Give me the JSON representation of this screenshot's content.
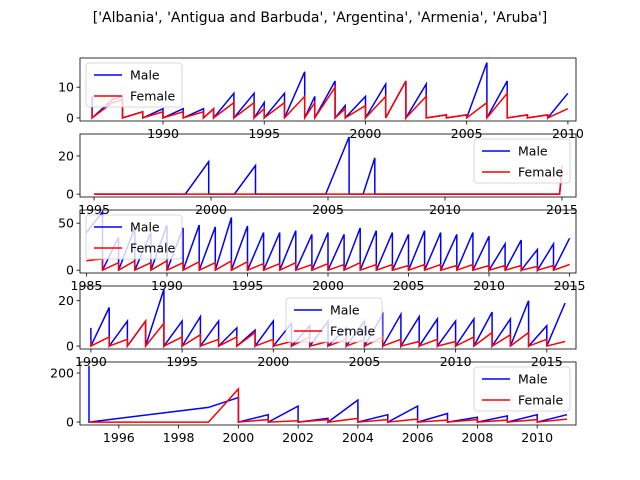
{
  "figure": {
    "title": "['Albania', 'Antigua and Barbuda', 'Argentina', 'Armenia', 'Aruba']"
  },
  "colors": {
    "male": "#0000ff",
    "female": "#ff0000"
  },
  "chart_data": [
    {
      "type": "line",
      "xlim": [
        1985.9,
        2010.4
      ],
      "ylim": [
        -1,
        19.5
      ],
      "xticks": [
        1990,
        1995,
        2000,
        2005,
        2010
      ],
      "yticks": [
        0,
        10
      ],
      "legend": "upper-left",
      "series": [
        {
          "name": "Male",
          "x": [
            1986.5,
            1986.5,
            1987.5,
            1988,
            1988,
            1989,
            1989,
            1990,
            1990,
            1991,
            1991,
            1992,
            1992,
            1992.5,
            1992.5,
            1993.5,
            1993.5,
            1994.5,
            1994.5,
            1995,
            1995,
            1996,
            1996,
            1997,
            1997,
            1997.5,
            1997.5,
            1998.5,
            1998.5,
            1999,
            1999,
            2000,
            2000,
            2001,
            2001,
            2002,
            2002,
            2003,
            2003,
            2004,
            2004,
            2005,
            2005,
            2006,
            2006,
            2007,
            2007,
            2008,
            2008,
            2009,
            2009,
            2010
          ],
          "y": [
            7,
            0,
            6,
            7,
            0,
            2,
            0,
            3,
            0,
            3,
            0,
            3,
            0,
            3,
            0,
            8,
            0,
            8,
            0,
            5,
            0,
            8,
            0,
            15,
            0,
            7,
            0,
            12,
            0,
            4,
            0,
            7,
            0,
            11,
            0,
            12,
            0,
            11,
            0,
            1,
            0,
            1,
            0,
            18,
            0,
            12,
            0,
            1,
            0,
            1,
            0,
            8
          ]
        },
        {
          "name": "Female",
          "x": [
            1986.5,
            1986.5,
            1987.5,
            1988,
            1988,
            1989,
            1989,
            1990,
            1990,
            1991,
            1991,
            1992,
            1992,
            1992.5,
            1992.5,
            1993.5,
            1993.5,
            1994.5,
            1994.5,
            1995,
            1995,
            1996,
            1996,
            1997,
            1997,
            1997.5,
            1997.5,
            1998.5,
            1998.5,
            1999,
            1999,
            2000,
            2000,
            2001,
            2001,
            2002,
            2002,
            2003,
            2003,
            2004,
            2004,
            2005,
            2005,
            2006,
            2006,
            2007,
            2007,
            2008,
            2008,
            2009,
            2009,
            2010
          ],
          "y": [
            3,
            0,
            5,
            6,
            0,
            2,
            0,
            2,
            0,
            2,
            0,
            2,
            0,
            3,
            0,
            5,
            0,
            5,
            0,
            3,
            0,
            5,
            0,
            7,
            0,
            5,
            0,
            10,
            0,
            3,
            0,
            4,
            0,
            7,
            0,
            12,
            0,
            7,
            0,
            1,
            0,
            1,
            0,
            5,
            0,
            8,
            0,
            1,
            0,
            1,
            0,
            3
          ]
        }
      ]
    },
    {
      "type": "line",
      "xlim": [
        1994.4,
        2015.6
      ],
      "ylim": [
        -1.5,
        31.5
      ],
      "xticks": [
        1995,
        2000,
        2005,
        2010,
        2015
      ],
      "yticks": [
        0,
        20
      ],
      "legend": "upper-right",
      "series": [
        {
          "name": "Male",
          "x": [
            1995,
            1998.9,
            1999.9,
            1999.9,
            2001,
            2001.9,
            2001.9,
            2004.9,
            2005.9,
            2005.9,
            2006.5,
            2007,
            2007,
            2010,
            2014.9,
            2015
          ],
          "y": [
            0,
            0,
            17,
            0,
            0,
            15,
            0,
            0,
            30,
            0,
            0,
            19,
            0,
            0,
            0,
            12
          ]
        },
        {
          "name": "Female",
          "x": [
            1995,
            2014.9,
            2015
          ],
          "y": [
            0,
            0,
            15
          ]
        }
      ]
    },
    {
      "type": "line",
      "xlim": [
        1984.6,
        2015.4
      ],
      "ylim": [
        -3,
        64
      ],
      "xticks": [
        1985,
        1990,
        1995,
        2000,
        2005,
        2010,
        2015
      ],
      "yticks": [
        0,
        50
      ],
      "legend": "upper-left",
      "series": [
        {
          "name": "Male",
          "x": [
            1985,
            1986,
            1986,
            1987,
            1987,
            1988,
            1988,
            1989,
            1989,
            1990,
            1990,
            1991,
            1991,
            1992,
            1992,
            1993,
            1993,
            1994,
            1994,
            1995,
            1995,
            1996,
            1996,
            1997,
            1997,
            1998,
            1998,
            1999,
            1999,
            2000,
            2000,
            2001,
            2001,
            2002,
            2002,
            2003,
            2003,
            2004,
            2004,
            2005,
            2005,
            2006,
            2006,
            2007,
            2007,
            2008,
            2008,
            2009,
            2009,
            2010,
            2010,
            2011,
            2011,
            2012,
            2012,
            2013,
            2013,
            2014,
            2014,
            2015
          ],
          "y": [
            40,
            62,
            0,
            35,
            0,
            45,
            0,
            40,
            0,
            48,
            0,
            45,
            0,
            48,
            0,
            46,
            0,
            56,
            0,
            47,
            0,
            40,
            0,
            40,
            0,
            42,
            0,
            38,
            0,
            40,
            0,
            38,
            0,
            45,
            0,
            42,
            0,
            40,
            0,
            38,
            0,
            42,
            0,
            40,
            0,
            38,
            0,
            40,
            0,
            36,
            0,
            28,
            0,
            32,
            0,
            22,
            0,
            28,
            0,
            34
          ]
        },
        {
          "name": "Female",
          "x": [
            1985,
            1986,
            1986,
            1987,
            1987,
            1988,
            1988,
            1989,
            1989,
            1990,
            1990,
            1991,
            1991,
            1992,
            1992,
            1993,
            1993,
            1994,
            1994,
            1995,
            1995,
            1996,
            1996,
            1997,
            1997,
            1998,
            1998,
            1999,
            1999,
            2000,
            2000,
            2001,
            2001,
            2002,
            2002,
            2003,
            2003,
            2004,
            2004,
            2005,
            2005,
            2006,
            2006,
            2007,
            2007,
            2008,
            2008,
            2009,
            2009,
            2010,
            2010,
            2011,
            2011,
            2012,
            2012,
            2013,
            2013,
            2014,
            2014,
            2015
          ],
          "y": [
            10,
            12,
            0,
            8,
            0,
            10,
            0,
            8,
            0,
            10,
            0,
            8,
            0,
            9,
            0,
            8,
            0,
            10,
            0,
            9,
            0,
            7,
            0,
            7,
            0,
            8,
            0,
            6,
            0,
            7,
            0,
            6,
            0,
            8,
            0,
            6,
            0,
            6,
            0,
            5,
            0,
            6,
            0,
            6,
            0,
            5,
            0,
            6,
            0,
            5,
            0,
            5,
            0,
            5,
            0,
            4,
            0,
            5,
            0,
            6
          ]
        }
      ]
    },
    {
      "type": "line",
      "xlim": [
        1989.4,
        2016.6
      ],
      "ylim": [
        -1.3,
        26.5
      ],
      "xticks": [
        1990,
        1995,
        2000,
        2005,
        2010,
        2015
      ],
      "yticks": [
        0,
        20
      ],
      "legend": "upper-center",
      "series": [
        {
          "name": "Male",
          "x": [
            1990,
            1990,
            1991,
            1991,
            1992,
            1992,
            1993,
            1993,
            1994,
            1994,
            1995,
            1995,
            1996,
            1996,
            1997,
            1997,
            1998,
            1998,
            1999,
            1999,
            2000,
            2000,
            2001,
            2001,
            2002,
            2002,
            2003,
            2003,
            2004,
            2004,
            2005,
            2005,
            2006,
            2006,
            2007,
            2007,
            2008,
            2008,
            2009,
            2009,
            2010,
            2010,
            2011,
            2011,
            2012,
            2012,
            2013,
            2013,
            2014,
            2014,
            2015,
            2015,
            2016
          ],
          "y": [
            8,
            0,
            17,
            0,
            11,
            0,
            11,
            0,
            25,
            0,
            11,
            0,
            13,
            0,
            11,
            0,
            8,
            0,
            7,
            0,
            11,
            0,
            10,
            0,
            9,
            0,
            11,
            0,
            8,
            0,
            11,
            0,
            14,
            0,
            14,
            0,
            13,
            0,
            12,
            0,
            11,
            0,
            12,
            0,
            15,
            0,
            12,
            0,
            20,
            0,
            9,
            0,
            19
          ]
        },
        {
          "name": "Female",
          "x": [
            1990,
            1990,
            1991,
            1991,
            1992,
            1992,
            1993,
            1993,
            1994,
            1994,
            1995,
            1995,
            1996,
            1996,
            1997,
            1997,
            1998,
            1998,
            1999,
            1999,
            2000,
            2000,
            2001,
            2001,
            2002,
            2002,
            2003,
            2003,
            2004,
            2004,
            2005,
            2005,
            2006,
            2006,
            2007,
            2007,
            2008,
            2008,
            2009,
            2009,
            2010,
            2010,
            2011,
            2011,
            2012,
            2012,
            2013,
            2013,
            2014,
            2014,
            2015,
            2015,
            2016
          ],
          "y": [
            2,
            0,
            4,
            0,
            3,
            0,
            11,
            0,
            10,
            0,
            4,
            0,
            5,
            0,
            3,
            0,
            4,
            0,
            6,
            0,
            3,
            0,
            2,
            0,
            4,
            0,
            2,
            0,
            3,
            0,
            3,
            0,
            4,
            0,
            3,
            0,
            2,
            0,
            3,
            0,
            2,
            0,
            4,
            0,
            6,
            0,
            5,
            0,
            6,
            0,
            3,
            0,
            2
          ]
        }
      ]
    },
    {
      "type": "line",
      "xlim": [
        1994.7,
        2011.3
      ],
      "ylim": [
        -12,
        245
      ],
      "xticks": [
        1996,
        1998,
        2000,
        2002,
        2004,
        2006,
        2008,
        2010
      ],
      "yticks": [
        0,
        200
      ],
      "legend": "upper-right",
      "series": [
        {
          "name": "Male",
          "x": [
            1995,
            1995,
            1999,
            2000,
            2000,
            2001,
            2001,
            2002,
            2002,
            2003,
            2003,
            2004,
            2004,
            2005,
            2005,
            2006,
            2006,
            2007,
            2007,
            2008,
            2008,
            2009,
            2009,
            2010,
            2010,
            2011
          ],
          "y": [
            230,
            0,
            60,
            100,
            0,
            30,
            0,
            65,
            0,
            15,
            0,
            90,
            0,
            30,
            0,
            65,
            0,
            35,
            0,
            20,
            0,
            25,
            0,
            30,
            0,
            30
          ]
        },
        {
          "name": "Female",
          "x": [
            1995,
            1999,
            2000,
            2000,
            2001,
            2001,
            2002,
            2002,
            2003,
            2003,
            2004,
            2004,
            2005,
            2005,
            2006,
            2006,
            2007,
            2007,
            2008,
            2008,
            2009,
            2009,
            2010,
            2010,
            2011
          ],
          "y": [
            0,
            0,
            135,
            0,
            10,
            0,
            5,
            0,
            10,
            0,
            15,
            0,
            10,
            0,
            12,
            0,
            8,
            0,
            10,
            0,
            8,
            0,
            10,
            0,
            12
          ]
        }
      ]
    }
  ]
}
